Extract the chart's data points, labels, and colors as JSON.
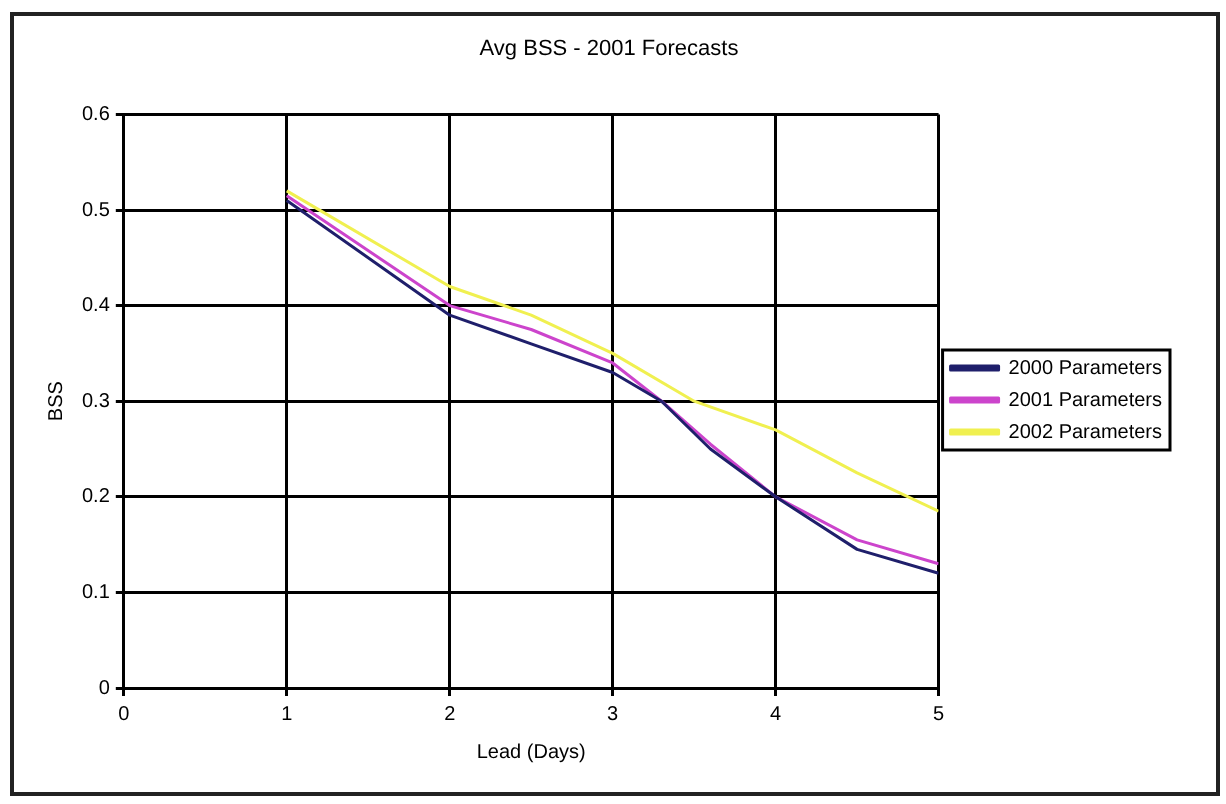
{
  "chart_data": {
    "type": "line",
    "title": "Avg BSS - 2001 Forecasts",
    "xlabel": "Lead (Days)",
    "ylabel": "BSS",
    "xlim": [
      0,
      5
    ],
    "xticks": [
      0,
      1,
      2,
      3,
      4,
      5
    ],
    "ylim": [
      0,
      0.6
    ],
    "yticks": [
      0,
      0.1,
      0.2,
      0.3,
      0.4,
      0.5,
      0.6
    ],
    "grid": true,
    "legend": "right",
    "marker": "none",
    "line_style": "solid",
    "series": [
      {
        "name": "2000 Parameters",
        "color": "#1f1f6b",
        "x": [
          1,
          2,
          2.5,
          3,
          3.3,
          3.6,
          4,
          4.5,
          5
        ],
        "values": [
          0.51,
          0.39,
          0.36,
          0.33,
          0.3,
          0.25,
          0.2,
          0.145,
          0.12
        ]
      },
      {
        "name": "2001 Parameters",
        "color": "#cc44cc",
        "x": [
          1,
          2,
          2.5,
          3,
          3.3,
          3.6,
          4,
          4.5,
          5
        ],
        "values": [
          0.515,
          0.4,
          0.375,
          0.34,
          0.3,
          0.255,
          0.2,
          0.155,
          0.13
        ]
      },
      {
        "name": "2002 Parameters",
        "color": "#f0f050",
        "x": [
          1,
          2,
          2.5,
          3,
          3.5,
          4,
          4.5,
          5
        ],
        "values": [
          0.52,
          0.42,
          0.39,
          0.35,
          0.3,
          0.27,
          0.225,
          0.185
        ]
      }
    ]
  }
}
